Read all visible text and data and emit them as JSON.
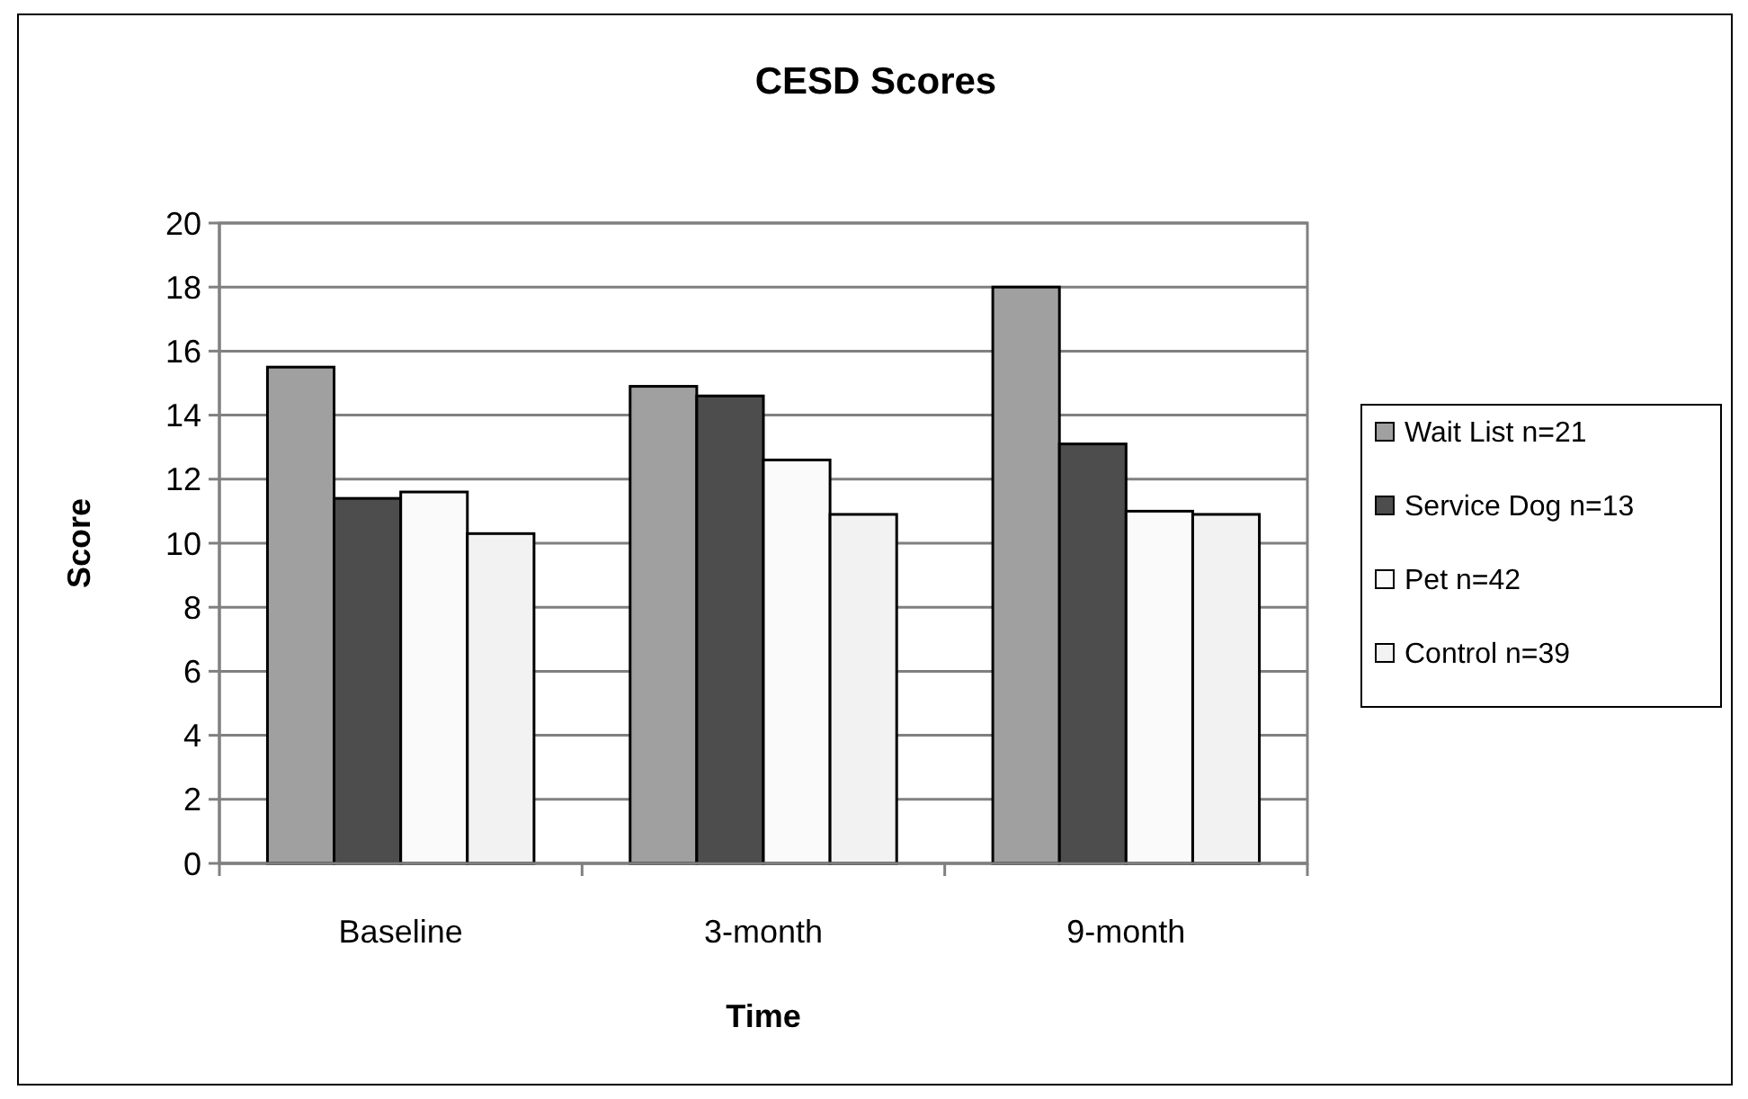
{
  "chart_data": {
    "type": "bar",
    "title": "CESD Scores",
    "xlabel": "Time",
    "ylabel": "Score",
    "categories": [
      "Baseline",
      "3-month",
      "9-month"
    ],
    "series": [
      {
        "name": "Wait List n=21",
        "color": "#a0a0a0",
        "values": [
          15.5,
          14.9,
          18.0
        ]
      },
      {
        "name": "Service Dog n=13",
        "color": "#4d4d4d",
        "values": [
          11.4,
          14.6,
          13.1
        ]
      },
      {
        "name": "Pet n=42",
        "color": "#fafafa",
        "values": [
          11.6,
          12.6,
          11.0
        ]
      },
      {
        "name": "Control n=39",
        "color": "#f2f2f2",
        "values": [
          10.3,
          10.9,
          10.9
        ]
      }
    ],
    "ylim": [
      0,
      20
    ],
    "yticks": [
      0,
      2,
      4,
      6,
      8,
      10,
      12,
      14,
      16,
      18,
      20
    ],
    "grid": "y",
    "legend": "right"
  }
}
